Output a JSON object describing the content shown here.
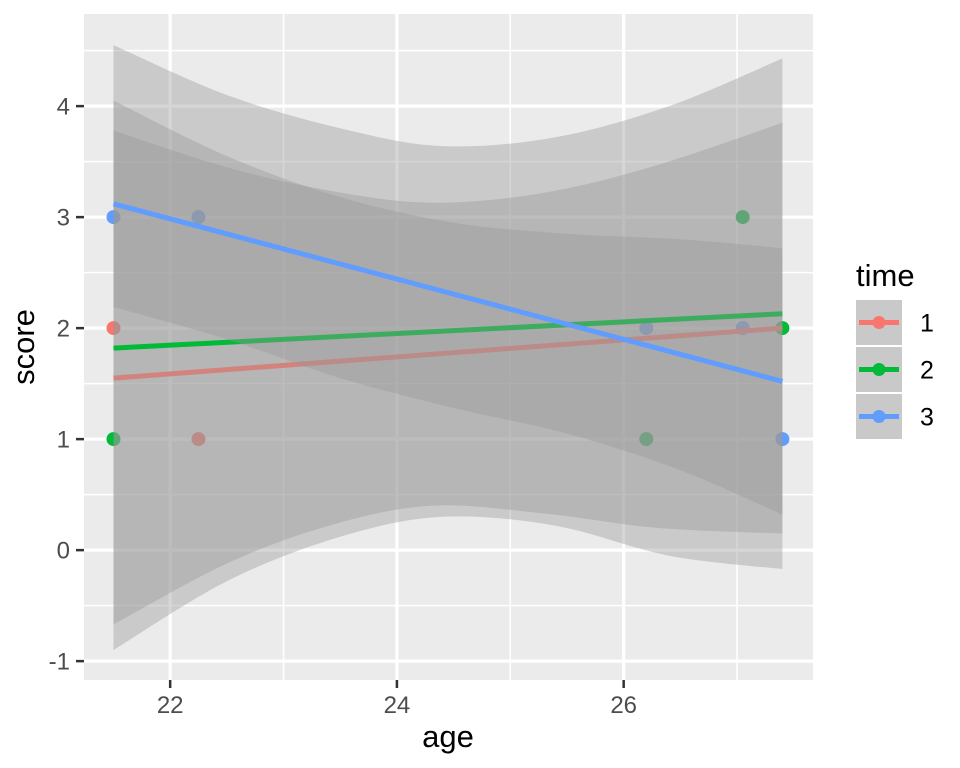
{
  "chart_data": {
    "type": "scatter",
    "smoother": "linear-regression-with-confidence-ribbon",
    "title": "",
    "xlabel": "age",
    "ylabel": "score",
    "x_axis": {
      "ticks": [
        22,
        24,
        26
      ],
      "minor_ticks": [
        23,
        25,
        27
      ],
      "domain": [
        21.24,
        27.67
      ]
    },
    "y_axis": {
      "ticks": [
        -1,
        0,
        1,
        2,
        3,
        4
      ],
      "minor_ticks": [
        -0.5,
        0.5,
        1.5,
        2.5,
        3.5,
        4.5
      ],
      "domain": [
        -1.17,
        4.83
      ]
    },
    "legend": {
      "title": "time",
      "entries": [
        {
          "label": "1",
          "color": "#F8766D"
        },
        {
          "label": "2",
          "color": "#00BA38"
        },
        {
          "label": "3",
          "color": "#619CFF"
        }
      ]
    },
    "series": [
      {
        "label": "1",
        "color": "#F8766D",
        "points": [
          {
            "x": 21.5,
            "y": 2
          },
          {
            "x": 22.25,
            "y": 1
          }
        ],
        "line": {
          "x1": 21.5,
          "y1": 1.55,
          "x2": 27.4,
          "y2": 2.0
        },
        "ribbon": {
          "x": [
            21.5,
            22.5,
            23.4,
            24.3,
            25.3,
            26.3,
            27.4
          ],
          "hi": [
            3.78,
            3.45,
            3.24,
            3.13,
            3.22,
            3.47,
            3.85
          ],
          "lo": [
            -0.67,
            -0.12,
            0.22,
            0.4,
            0.33,
            0.2,
            0.15
          ]
        }
      },
      {
        "label": "2",
        "color": "#00BA38",
        "points": [
          {
            "x": 21.5,
            "y": 1
          },
          {
            "x": 26.2,
            "y": 1
          },
          {
            "x": 27.05,
            "y": 3
          },
          {
            "x": 27.4,
            "y": 2
          }
        ],
        "line": {
          "x1": 21.5,
          "y1": 1.82,
          "x2": 27.4,
          "y2": 2.13
        },
        "ribbon": {
          "x": [
            21.5,
            22.5,
            23.5,
            24.4,
            25.4,
            26.4,
            27.4
          ],
          "hi": [
            4.55,
            4.1,
            3.8,
            3.64,
            3.72,
            4.0,
            4.43
          ],
          "lo": [
            -0.9,
            -0.28,
            0.12,
            0.3,
            0.22,
            -0.05,
            -0.17
          ]
        }
      },
      {
        "label": "3",
        "color": "#619CFF",
        "points": [
          {
            "x": 21.5,
            "y": 3
          },
          {
            "x": 22.25,
            "y": 3
          },
          {
            "x": 26.2,
            "y": 2
          },
          {
            "x": 27.05,
            "y": 2
          },
          {
            "x": 27.4,
            "y": 1
          }
        ],
        "line": {
          "x1": 21.5,
          "y1": 3.12,
          "x2": 27.4,
          "y2": 1.52
        },
        "ribbon": {
          "x": [
            21.5,
            22.5,
            23.5,
            24.5,
            25.5,
            26.5,
            27.4
          ],
          "hi": [
            4.05,
            3.55,
            3.18,
            2.95,
            2.85,
            2.8,
            2.72
          ],
          "lo": [
            2.19,
            1.9,
            1.55,
            1.28,
            1.05,
            0.72,
            0.32
          ]
        }
      }
    ],
    "style": {
      "panel_bg": "#EBEBEB",
      "grid_color": "#FFFFFF",
      "ribbon_fill": "#999999",
      "ribbon_alpha": 0.4,
      "tick_label_color": "#4D4D4D",
      "tick_mark_color": "#333333",
      "legend_key_bg": "#C9C9C9",
      "point_radius": 7,
      "line_width": 5
    }
  }
}
